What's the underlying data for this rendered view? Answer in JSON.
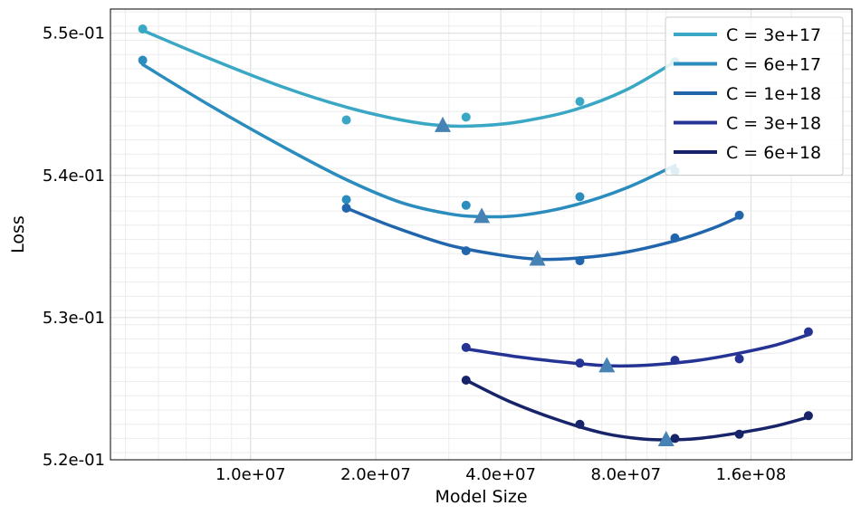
{
  "chart_data": {
    "type": "line",
    "title": "",
    "xlabel": "Model Size",
    "ylabel": "Loss",
    "xscale": "log",
    "xlim": [
      4600000,
      280000000
    ],
    "ylim": [
      0.52,
      0.5517
    ],
    "xticks": [
      {
        "value": 10000000,
        "label": "1.0e+07"
      },
      {
        "value": 20000000,
        "label": "2.0e+07"
      },
      {
        "value": 40000000,
        "label": "4.0e+07"
      },
      {
        "value": 80000000,
        "label": "8.0e+07"
      },
      {
        "value": 160000000,
        "label": "1.6e+08"
      }
    ],
    "yticks": [
      {
        "value": 0.52,
        "label": "5.2e-01"
      },
      {
        "value": 0.53,
        "label": "5.3e-01"
      },
      {
        "value": 0.54,
        "label": "5.4e-01"
      },
      {
        "value": 0.55,
        "label": "5.5e-01"
      }
    ],
    "grid": true,
    "legend_position": "top-right",
    "series": [
      {
        "name": "C = 3e+17",
        "color": "#3aa7c4",
        "points": [
          [
            5500000,
            0.5503
          ],
          [
            17000000,
            0.5439
          ],
          [
            33000000,
            0.5441
          ],
          [
            62000000,
            0.5452
          ],
          [
            105000000,
            0.548
          ]
        ],
        "fit": [
          [
            5500000,
            0.5502
          ],
          [
            8000000,
            0.5482
          ],
          [
            12000000,
            0.5462
          ],
          [
            17000000,
            0.5448
          ],
          [
            23000000,
            0.5439
          ],
          [
            29000000,
            0.5435
          ],
          [
            36000000,
            0.5435
          ],
          [
            45000000,
            0.5438
          ],
          [
            60000000,
            0.5446
          ],
          [
            80000000,
            0.546
          ],
          [
            105000000,
            0.548
          ]
        ],
        "optimum": [
          29000000,
          0.5435
        ]
      },
      {
        "name": "C = 6e+17",
        "color": "#2b8cbe",
        "points": [
          [
            5500000,
            0.5481
          ],
          [
            17000000,
            0.5383
          ],
          [
            33000000,
            0.5379
          ],
          [
            62000000,
            0.5385
          ],
          [
            105000000,
            0.5403
          ]
        ],
        "fit": [
          [
            5500000,
            0.5478
          ],
          [
            8000000,
            0.5449
          ],
          [
            12000000,
            0.542
          ],
          [
            17000000,
            0.5397
          ],
          [
            23000000,
            0.5381
          ],
          [
            30000000,
            0.5373
          ],
          [
            36000000,
            0.5371
          ],
          [
            45000000,
            0.5372
          ],
          [
            60000000,
            0.5379
          ],
          [
            80000000,
            0.5391
          ],
          [
            105000000,
            0.5407
          ]
        ],
        "optimum": [
          36000000,
          0.5371
        ]
      },
      {
        "name": "C = 1e+18",
        "color": "#2166ac",
        "points": [
          [
            17000000,
            0.5377
          ],
          [
            33000000,
            0.5347
          ],
          [
            62000000,
            0.534
          ],
          [
            105000000,
            0.5356
          ],
          [
            150000000,
            0.5372
          ]
        ],
        "fit": [
          [
            17000000,
            0.5377
          ],
          [
            22000000,
            0.5364
          ],
          [
            30000000,
            0.5351
          ],
          [
            40000000,
            0.5344
          ],
          [
            50000000,
            0.5341
          ],
          [
            62000000,
            0.5342
          ],
          [
            80000000,
            0.5346
          ],
          [
            105000000,
            0.5354
          ],
          [
            130000000,
            0.5363
          ],
          [
            150000000,
            0.5371
          ]
        ],
        "optimum": [
          49000000,
          0.5341
        ]
      },
      {
        "name": "C = 3e+18",
        "color": "#253494",
        "points": [
          [
            33000000,
            0.5279
          ],
          [
            62000000,
            0.5268
          ],
          [
            105000000,
            0.527
          ],
          [
            150000000,
            0.5271
          ],
          [
            220000000,
            0.529
          ]
        ],
        "fit": [
          [
            33000000,
            0.5278
          ],
          [
            45000000,
            0.5272
          ],
          [
            60000000,
            0.5268
          ],
          [
            75000000,
            0.5266
          ],
          [
            95000000,
            0.5267
          ],
          [
            120000000,
            0.527
          ],
          [
            150000000,
            0.5275
          ],
          [
            185000000,
            0.5281
          ],
          [
            220000000,
            0.5288
          ]
        ],
        "optimum": [
          72000000,
          0.5266
        ]
      },
      {
        "name": "C = 6e+18",
        "color": "#172469",
        "points": [
          [
            33000000,
            0.5256
          ],
          [
            62000000,
            0.5225
          ],
          [
            105000000,
            0.5215
          ],
          [
            150000000,
            0.5218
          ],
          [
            220000000,
            0.5231
          ]
        ],
        "fit": [
          [
            33000000,
            0.5256
          ],
          [
            42000000,
            0.5241
          ],
          [
            55000000,
            0.5228
          ],
          [
            70000000,
            0.5219
          ],
          [
            85000000,
            0.5215
          ],
          [
            100000000,
            0.5214
          ],
          [
            120000000,
            0.5215
          ],
          [
            150000000,
            0.5219
          ],
          [
            185000000,
            0.5224
          ],
          [
            220000000,
            0.523
          ]
        ],
        "optimum": [
          100000000,
          0.5214
        ]
      }
    ],
    "optimum_marker_color": "#4682b4"
  }
}
